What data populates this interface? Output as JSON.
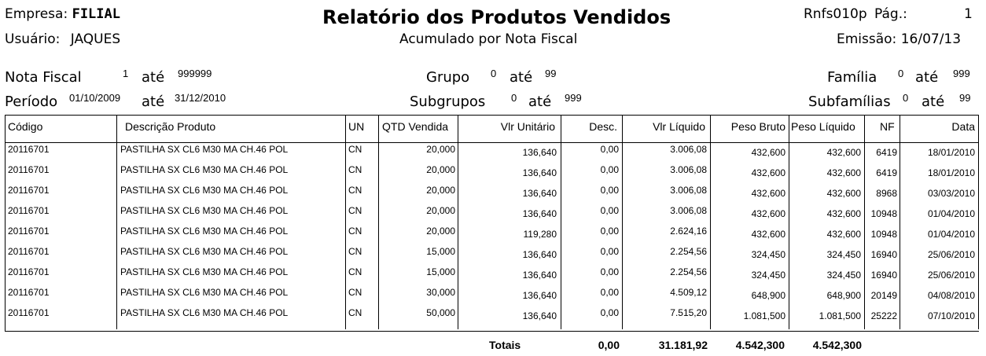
{
  "header": {
    "empresa_label": "Empresa:",
    "empresa_value": "FILIAL",
    "usuario_label": "Usuário:",
    "usuario_value": "JAQUES",
    "title": "Relatório dos Produtos Vendidos",
    "subtitle": "Acumulado por Nota Fiscal",
    "program": "Rnfs010p",
    "page_label": "Pág.:",
    "page_value": "1",
    "emissao_label": "Emissão:",
    "emissao_value": "16/07/13"
  },
  "filters": {
    "nota_fiscal_label": "Nota Fiscal",
    "nota_fiscal_from": "1",
    "nota_fiscal_to": "999999",
    "periodo_label": "Período",
    "periodo_from": "01/10/2009",
    "periodo_to": "31/12/2010",
    "grupo_label": "Grupo",
    "grupo_from": "0",
    "grupo_to": "99",
    "subgrupos_label": "Subgrupos",
    "subgrupos_from": "0",
    "subgrupos_to": "999",
    "familia_label": "Família",
    "familia_from": "0",
    "familia_to": "999",
    "subfamilias_label": "Subfamílias",
    "subfamilias_from": "0",
    "subfamilias_to": "99",
    "ate": "até"
  },
  "table": {
    "columns": [
      "Código",
      "Descrição Produto",
      "UN",
      "QTD Vendida",
      "Vlr Unitário",
      "Desc.",
      "Vlr Líquido",
      "Peso Bruto",
      "Peso Líquido",
      "NF",
      "Data"
    ],
    "rows": [
      [
        "20116701",
        "PASTILHA SX CL6 M30 MA CH.46 POL",
        "CN",
        "20,000",
        "136,640",
        "0,00",
        "3.006,08",
        "432,600",
        "432,600",
        "6419",
        "18/01/2010"
      ],
      [
        "20116701",
        "PASTILHA SX CL6 M30 MA CH.46 POL",
        "CN",
        "20,000",
        "136,640",
        "0,00",
        "3.006,08",
        "432,600",
        "432,600",
        "6419",
        "18/01/2010"
      ],
      [
        "20116701",
        "PASTILHA SX CL6 M30 MA CH.46 POL",
        "CN",
        "20,000",
        "136,640",
        "0,00",
        "3.006,08",
        "432,600",
        "432,600",
        "8968",
        "03/03/2010"
      ],
      [
        "20116701",
        "PASTILHA SX CL6 M30 MA CH.46 POL",
        "CN",
        "20,000",
        "136,640",
        "0,00",
        "3.006,08",
        "432,600",
        "432,600",
        "10948",
        "01/04/2010"
      ],
      [
        "20116701",
        "PASTILHA SX CL6 M30 MA CH.46 POL",
        "CN",
        "20,000",
        "119,280",
        "0,00",
        "2.624,16",
        "432,600",
        "432,600",
        "10948",
        "01/04/2010"
      ],
      [
        "20116701",
        "PASTILHA SX CL6 M30 MA CH.46 POL",
        "CN",
        "15,000",
        "136,640",
        "0,00",
        "2.254,56",
        "324,450",
        "324,450",
        "16940",
        "25/06/2010"
      ],
      [
        "20116701",
        "PASTILHA SX CL6 M30 MA CH.46 POL",
        "CN",
        "15,000",
        "136,640",
        "0,00",
        "2.254,56",
        "324,450",
        "324,450",
        "16940",
        "25/06/2010"
      ],
      [
        "20116701",
        "PASTILHA SX CL6 M30 MA CH.46 POL",
        "CN",
        "30,000",
        "136,640",
        "0,00",
        "4.509,12",
        "648,900",
        "648,900",
        "20149",
        "04/08/2010"
      ],
      [
        "20116701",
        "PASTILHA SX CL6 M30 MA CH.46 POL",
        "CN",
        "50,000",
        "136,640",
        "0,00",
        "7.515,20",
        "1.081,500",
        "1.081,500",
        "25222",
        "07/10/2010"
      ]
    ]
  },
  "totals": {
    "label": "Totais",
    "desc": "0,00",
    "vlr_liquido": "31.181,92",
    "peso_bruto": "4.542,300",
    "peso_liquido": "4.542,300"
  }
}
